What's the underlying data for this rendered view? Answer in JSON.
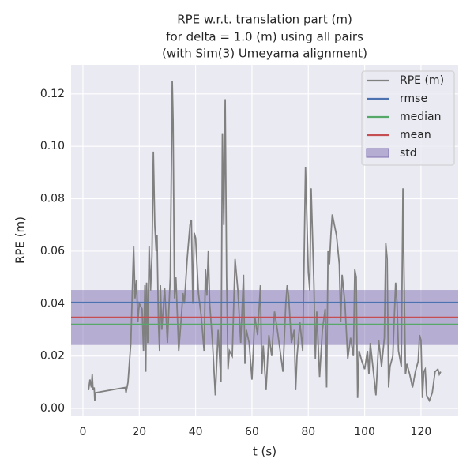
{
  "chart_data": {
    "type": "line",
    "title_lines": [
      "RPE w.r.t. translation part (m)",
      "for delta = 1.0 (m) using all pairs",
      "(with Sim(3) Umeyama alignment)"
    ],
    "xlabel": "t (s)",
    "ylabel": "RPE (m)",
    "x": [
      2,
      2.5,
      3,
      3.3,
      3.6,
      4,
      4.2,
      4.5,
      15,
      15.3,
      16,
      17,
      18,
      18.5,
      19,
      19.5,
      20,
      21,
      21.5,
      22,
      22.3,
      22.6,
      23,
      23.5,
      24,
      24.5,
      25,
      25.5,
      26,
      26.3,
      26.8,
      27.2,
      27.5,
      28,
      29,
      30,
      31,
      31.7,
      32,
      32.5,
      33,
      34,
      35,
      35.5,
      36,
      37,
      38,
      38.5,
      39,
      39.5,
      40,
      41,
      42,
      43,
      43.5,
      44,
      44.5,
      45,
      46,
      47,
      48,
      49,
      49.5,
      50,
      50.5,
      51,
      51.5,
      52,
      53,
      54,
      55,
      56,
      57,
      57.5,
      58,
      59,
      60,
      61,
      62,
      63,
      63.5,
      64,
      65,
      66,
      67,
      68,
      69,
      70,
      71,
      72,
      72.5,
      73,
      74,
      75,
      75.5,
      76,
      77,
      78,
      79,
      80,
      80.5,
      81,
      82,
      82.5,
      83,
      84,
      85,
      86,
      86.5,
      87,
      87.5,
      88,
      88.5,
      90,
      91,
      91.5,
      92,
      93,
      94,
      95,
      96,
      96.5,
      97,
      97.5,
      98,
      99,
      100,
      101,
      101.5,
      102,
      103,
      104,
      105,
      106,
      107,
      107.5,
      108,
      108.5,
      109,
      110,
      111,
      111.5,
      112,
      113,
      113.6,
      114,
      114.5,
      115,
      116,
      117,
      118,
      119,
      119.5,
      120,
      120.5,
      121,
      121.5,
      122,
      123,
      124,
      125,
      126,
      126.5,
      127
    ],
    "series": [
      {
        "name": "RPE (m)",
        "color": "#808080",
        "values": [
          0.007,
          0.011,
          0.008,
          0.013,
          0.007,
          0.008,
          0.003,
          0.006,
          0.008,
          0.006,
          0.01,
          0.025,
          0.062,
          0.042,
          0.049,
          0.033,
          0.04,
          0.038,
          0.022,
          0.047,
          0.014,
          0.048,
          0.025,
          0.062,
          0.045,
          0.058,
          0.098,
          0.07,
          0.06,
          0.066,
          0.033,
          0.022,
          0.047,
          0.03,
          0.046,
          0.025,
          0.05,
          0.125,
          0.11,
          0.042,
          0.05,
          0.022,
          0.036,
          0.044,
          0.04,
          0.057,
          0.07,
          0.072,
          0.04,
          0.067,
          0.065,
          0.044,
          0.035,
          0.022,
          0.053,
          0.043,
          0.06,
          0.04,
          0.025,
          0.005,
          0.03,
          0.01,
          0.105,
          0.07,
          0.118,
          0.05,
          0.015,
          0.022,
          0.02,
          0.057,
          0.045,
          0.025,
          0.051,
          0.017,
          0.03,
          0.025,
          0.011,
          0.035,
          0.028,
          0.047,
          0.013,
          0.024,
          0.007,
          0.028,
          0.02,
          0.037,
          0.03,
          0.022,
          0.014,
          0.04,
          0.047,
          0.043,
          0.025,
          0.03,
          0.007,
          0.02,
          0.033,
          0.022,
          0.092,
          0.052,
          0.045,
          0.084,
          0.047,
          0.019,
          0.037,
          0.012,
          0.03,
          0.038,
          0.008,
          0.06,
          0.055,
          0.066,
          0.074,
          0.066,
          0.055,
          0.033,
          0.051,
          0.04,
          0.019,
          0.027,
          0.02,
          0.053,
          0.05,
          0.004,
          0.022,
          0.018,
          0.015,
          0.022,
          0.013,
          0.025,
          0.015,
          0.005,
          0.026,
          0.016,
          0.027,
          0.063,
          0.057,
          0.008,
          0.016,
          0.02,
          0.048,
          0.04,
          0.022,
          0.016,
          0.084,
          0.05,
          0.013,
          0.017,
          0.013,
          0.008,
          0.014,
          0.018,
          0.028,
          0.026,
          0.004,
          0.014,
          0.015,
          0.005,
          0.003,
          0.006,
          0.014,
          0.015,
          0.013,
          0.014
        ]
      }
    ],
    "stats": [
      {
        "name": "rmse",
        "color": "#4c72b0",
        "value": 0.0404
      },
      {
        "name": "median",
        "color": "#55a868",
        "value": 0.032
      },
      {
        "name": "mean",
        "color": "#c44e52",
        "value": 0.0347
      }
    ],
    "std": {
      "name": "std",
      "color": "#8172b2",
      "value": 0.0105
    },
    "xlim": [
      -4.2,
      133.2
    ],
    "ylim": [
      -0.003,
      0.1311
    ],
    "xticks": [
      0,
      20,
      40,
      60,
      80,
      100,
      120
    ],
    "yticks": [
      {
        "value": 0,
        "label": "0.00"
      },
      0.02,
      0.04,
      0.06,
      0.08,
      {
        "value": 0.1,
        "label": "0.10"
      },
      0.12
    ],
    "grid": true,
    "legend": "upper right"
  }
}
